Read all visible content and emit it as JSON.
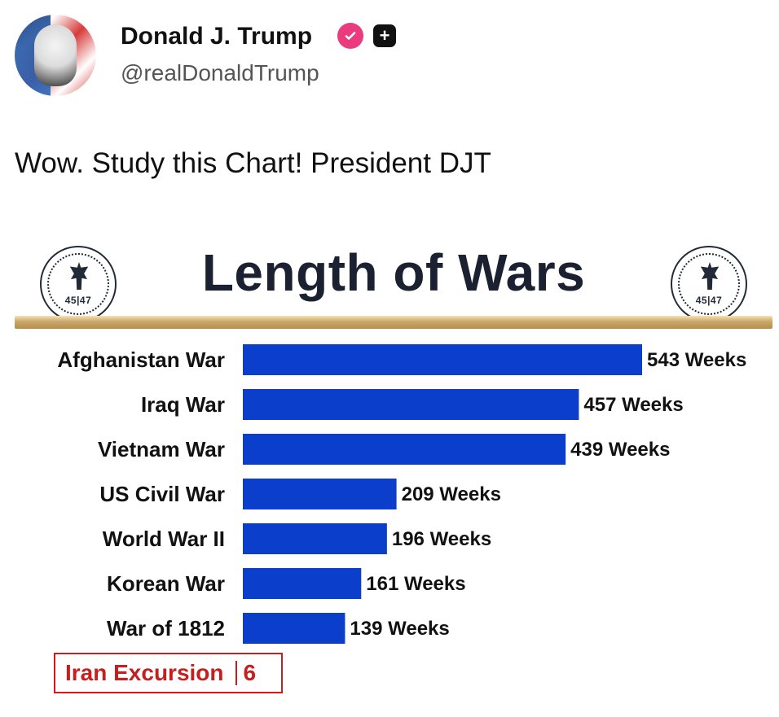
{
  "post": {
    "display_name": "Donald J. Trump",
    "handle": "@realDonaldTrump",
    "text": "Wow. Study this Chart! President DJT"
  },
  "icons": {
    "avatar": "profile-avatar",
    "verified": "verified-badge-icon",
    "plus": "plus-badge-icon",
    "seal": "presidential-seal-icon"
  },
  "seal_text": "45|47",
  "chart_data": {
    "type": "bar",
    "orientation": "horizontal",
    "title": "Length of Wars",
    "categories": [
      "Afghanistan War",
      "Iraq War",
      "Vietnam War",
      "US Civil War",
      "World War II",
      "Korean War",
      "War of 1812"
    ],
    "values": [
      543,
      457,
      439,
      209,
      196,
      161,
      139
    ],
    "value_labels": [
      "543 Weeks",
      "457 Weeks",
      "439 Weeks",
      "209 Weeks",
      "196 Weeks",
      "161 Weeks",
      "139 Weeks"
    ],
    "highlight": {
      "label": "Iran Excursion",
      "value": 6
    },
    "colors": {
      "bar": "#0b3fcb",
      "title": "#1c2132",
      "accent": "#b68e4b",
      "highlight": "#c51f1f"
    }
  }
}
